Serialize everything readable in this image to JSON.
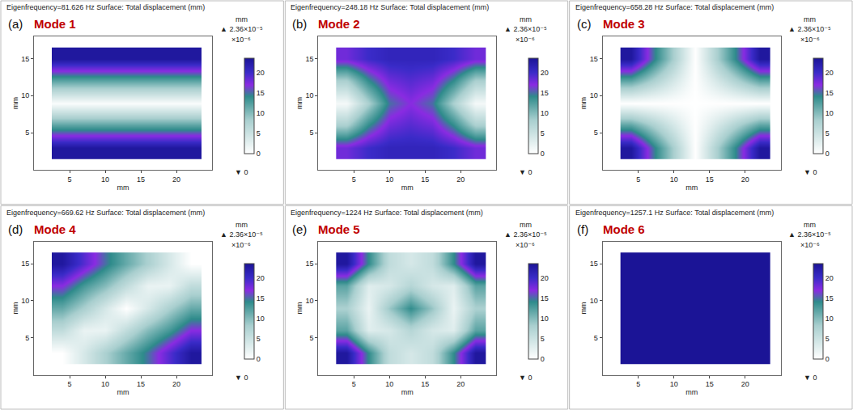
{
  "chart_data": [
    {
      "type": "heatmap",
      "title": "Eigenfrequency=81.626 Hz Surface: Total displacement (mm)",
      "annotations": [
        "(a)",
        "Mode 1"
      ],
      "x": [
        4,
        7,
        10,
        13,
        16,
        19,
        22
      ],
      "y": [
        3,
        6,
        9,
        12,
        15
      ],
      "z": [
        [
          23,
          23,
          23,
          23,
          23,
          23,
          23
        ],
        [
          12,
          12,
          12,
          12,
          12,
          12,
          12
        ],
        [
          0.5,
          0.5,
          0.5,
          0.5,
          0.5,
          0.5,
          0.5
        ],
        [
          12,
          12,
          12,
          12,
          12,
          12,
          12
        ],
        [
          23,
          23,
          23,
          23,
          23,
          23,
          23
        ]
      ],
      "xlim": [
        0,
        25
      ],
      "ylim": [
        0,
        18
      ],
      "xticks": [
        5,
        10,
        15,
        20
      ],
      "yticks": [
        5,
        10,
        15
      ],
      "x_label": "mm",
      "y_label": "mm",
      "colorbar": {
        "range": [
          0,
          23.6
        ],
        "ticks": [
          0,
          5,
          10,
          15,
          20
        ],
        "title": "mm",
        "max_label": "▲ 2.36×10⁻⁵",
        "scale_label": "×10⁻⁶",
        "min_label": "▼ 0"
      }
    },
    {
      "type": "heatmap",
      "title": "Eigenfrequency=248.18 Hz Surface: Total displacement (mm)",
      "annotations": [
        "(b)",
        "Mode 2"
      ],
      "x": [
        4,
        7,
        10,
        13,
        16,
        19,
        22
      ],
      "y": [
        3,
        6,
        9,
        12,
        15
      ],
      "z": [
        [
          18,
          20,
          21,
          21,
          21,
          20,
          18
        ],
        [
          8,
          14,
          18,
          19,
          18,
          14,
          8
        ],
        [
          1,
          8,
          15,
          17,
          15,
          8,
          1
        ],
        [
          8,
          14,
          18,
          19,
          18,
          14,
          8
        ],
        [
          18,
          20,
          21,
          21,
          21,
          20,
          18
        ]
      ],
      "xlim": [
        0,
        25
      ],
      "ylim": [
        0,
        18
      ],
      "xticks": [
        5,
        10,
        15,
        20
      ],
      "yticks": [
        5,
        10,
        15
      ],
      "x_label": "mm",
      "y_label": "mm",
      "colorbar": {
        "range": [
          0,
          23.6
        ],
        "ticks": [
          0,
          5,
          10,
          15,
          20
        ],
        "title": "mm",
        "max_label": "▲ 2.36×10⁻⁵",
        "scale_label": "×10⁻⁶",
        "min_label": "▼ 0"
      }
    },
    {
      "type": "heatmap",
      "title": "Eigenfrequency=658.28 Hz Surface: Total displacement (mm)",
      "annotations": [
        "(c)",
        "Mode 3"
      ],
      "x": [
        4,
        7,
        10,
        13,
        16,
        19,
        22
      ],
      "y": [
        3,
        6,
        9,
        12,
        15
      ],
      "z": [
        [
          23,
          15,
          8,
          0,
          8,
          15,
          23
        ],
        [
          12,
          8,
          4,
          0,
          4,
          8,
          12
        ],
        [
          0,
          0,
          0,
          0,
          0,
          0,
          0
        ],
        [
          12,
          8,
          4,
          0,
          4,
          8,
          12
        ],
        [
          23,
          15,
          8,
          0,
          8,
          15,
          23
        ]
      ],
      "xlim": [
        0,
        25
      ],
      "ylim": [
        0,
        18
      ],
      "xticks": [
        5,
        10,
        15,
        20
      ],
      "yticks": [
        5,
        10,
        15
      ],
      "x_label": "mm",
      "y_label": "mm",
      "colorbar": {
        "range": [
          0,
          23.6
        ],
        "ticks": [
          0,
          5,
          10,
          15,
          20
        ],
        "title": "mm",
        "max_label": "▲ 2.36×10⁻⁵",
        "scale_label": "×10⁻⁶",
        "min_label": "▼ 0"
      }
    },
    {
      "type": "heatmap",
      "title": "Eigenfrequency=669.62 Hz Surface: Total displacement (mm)",
      "annotations": [
        "(d)",
        "Mode 4"
      ],
      "x": [
        4,
        7,
        10,
        13,
        16,
        19,
        22
      ],
      "y": [
        3,
        6,
        9,
        12,
        15
      ],
      "z": [
        [
          0,
          4,
          8,
          11.5,
          15,
          19,
          23
        ],
        [
          6,
          2,
          2,
          6,
          10,
          13,
          17
        ],
        [
          11.5,
          8,
          4,
          0,
          4,
          8,
          11.5
        ],
        [
          17,
          13,
          10,
          6,
          2,
          2,
          6
        ],
        [
          23,
          19,
          15,
          11.5,
          8,
          4,
          0
        ]
      ],
      "xlim": [
        0,
        25
      ],
      "ylim": [
        0,
        18
      ],
      "xticks": [
        5,
        10,
        15,
        20
      ],
      "yticks": [
        5,
        10,
        15
      ],
      "x_label": "mm",
      "y_label": "mm",
      "colorbar": {
        "range": [
          0,
          23.6
        ],
        "ticks": [
          0,
          5,
          10,
          15,
          20
        ],
        "title": "mm",
        "max_label": "▲ 2.36×10⁻⁵",
        "scale_label": "×10⁻⁶",
        "min_label": "▼ 0"
      }
    },
    {
      "type": "heatmap",
      "title": "Eigenfrequency=1224 Hz Surface: Total displacement (mm)",
      "annotations": [
        "(e)",
        "Mode 5"
      ],
      "x": [
        4,
        7,
        10,
        13,
        16,
        19,
        22
      ],
      "y": [
        3,
        6,
        9,
        12,
        15
      ],
      "z": [
        [
          23,
          14,
          6,
          4,
          6,
          14,
          23
        ],
        [
          12,
          3,
          4,
          7,
          4,
          3,
          12
        ],
        [
          8,
          2,
          9,
          14,
          9,
          2,
          8
        ],
        [
          12,
          3,
          4,
          7,
          4,
          3,
          12
        ],
        [
          23,
          14,
          6,
          4,
          6,
          14,
          23
        ]
      ],
      "xlim": [
        0,
        25
      ],
      "ylim": [
        0,
        18
      ],
      "xticks": [
        5,
        10,
        15,
        20
      ],
      "yticks": [
        5,
        10,
        15
      ],
      "x_label": "mm",
      "y_label": "mm",
      "colorbar": {
        "range": [
          0,
          23.6
        ],
        "ticks": [
          0,
          5,
          10,
          15,
          20
        ],
        "title": "mm",
        "max_label": "▲ 2.36×10⁻⁵",
        "scale_label": "×10⁻⁶",
        "min_label": "▼ 0"
      }
    },
    {
      "type": "heatmap",
      "title": "Eigenfrequency=1257.1 Hz Surface: Total displacement (mm)",
      "annotations": [
        "(f)",
        "Mode 6"
      ],
      "x": [
        4,
        7,
        10,
        13,
        16,
        19,
        22
      ],
      "y": [
        3,
        6,
        9,
        12,
        15
      ],
      "z": [
        [
          23.6,
          23.6,
          23.6,
          23.6,
          23.6,
          23.6,
          23.6
        ],
        [
          23.6,
          23.6,
          23.6,
          23.6,
          23.6,
          23.6,
          23.6
        ],
        [
          23.6,
          23.6,
          23.6,
          23.6,
          23.6,
          23.6,
          23.6
        ],
        [
          23.6,
          23.6,
          23.6,
          23.6,
          23.6,
          23.6,
          23.6
        ],
        [
          23.6,
          23.6,
          23.6,
          23.6,
          23.6,
          23.6,
          23.6
        ]
      ],
      "xlim": [
        0,
        25
      ],
      "ylim": [
        0,
        18
      ],
      "xticks": [
        5,
        10,
        15,
        20
      ],
      "yticks": [
        5,
        10,
        15
      ],
      "x_label": "mm",
      "y_label": "mm",
      "colorbar": {
        "range": [
          0,
          23.6
        ],
        "ticks": [
          0,
          5,
          10,
          15,
          20
        ],
        "title": "mm",
        "max_label": "▲ 2.36×10⁻⁵",
        "scale_label": "×10⁻⁶",
        "min_label": "▼ 0"
      }
    }
  ]
}
